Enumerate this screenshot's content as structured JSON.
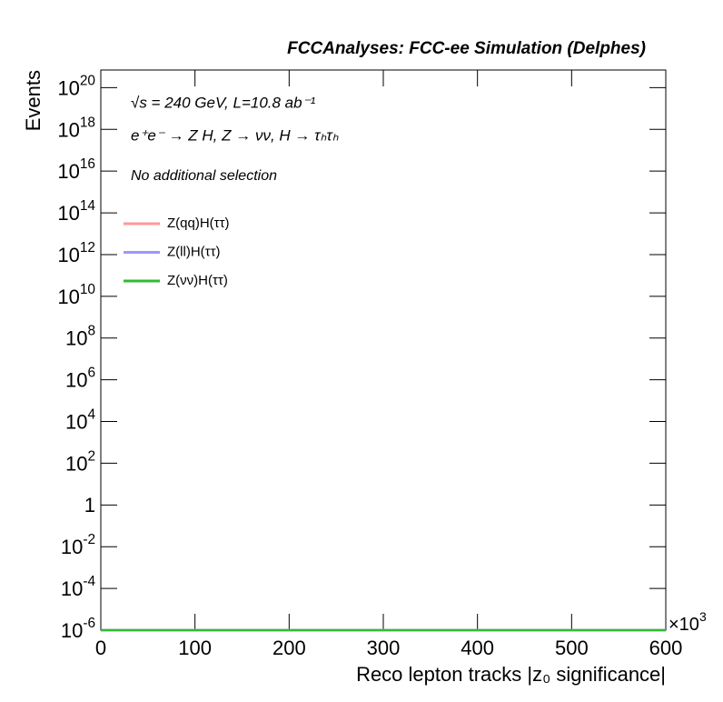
{
  "chart_data": {
    "type": "line",
    "title": "FCCAnalyses: FCC-ee Simulation (Delphes)",
    "annotations": [
      "√s = 240 GeV, L=10.8 ab⁻¹",
      "e⁺e⁻ → Z H, Z → νν, H → τₕτₕ",
      "No additional selection"
    ],
    "x_label": "Reco lepton tracks |z₀ significance|",
    "x_multiplier": "×10^3",
    "y_label": "Events",
    "log_y": true,
    "x": [
      0,
      600
    ],
    "series": [
      {
        "name": "Z(qq)H(ττ)",
        "color": "#ff9999",
        "values": [
          1e-06,
          1e-06
        ]
      },
      {
        "name": "Z(ll)H(ττ)",
        "color": "#9999ff",
        "values": [
          1e-06,
          1e-06
        ]
      },
      {
        "name": "Z(νν)H(ττ)",
        "color": "#33bb33",
        "values": [
          1e-06,
          1e-06
        ]
      }
    ],
    "xlim": [
      0,
      600
    ],
    "xticks": [
      0,
      100,
      200,
      300,
      400,
      500,
      600
    ],
    "ylim": [
      1e-06,
      7e+20
    ],
    "yticks": [
      {
        "value": 1e-06,
        "label": "10^-6"
      },
      {
        "value": 0.0001,
        "label": "10^-4"
      },
      {
        "value": 0.01,
        "label": "10^-2"
      },
      1,
      {
        "value": 100,
        "label": "10^2"
      },
      {
        "value": 10000.0,
        "label": "10^4"
      },
      {
        "value": 1000000.0,
        "label": "10^6"
      },
      {
        "value": 100000000.0,
        "label": "10^8"
      },
      {
        "value": 10000000000.0,
        "label": "10^10"
      },
      {
        "value": 1000000000000.0,
        "label": "10^12"
      },
      {
        "value": 100000000000000.0,
        "label": "10^14"
      },
      {
        "value": 1e+16,
        "label": "10^16"
      },
      {
        "value": 1e+18,
        "label": "10^18"
      },
      {
        "value": 1e+20,
        "label": "10^20"
      }
    ]
  }
}
